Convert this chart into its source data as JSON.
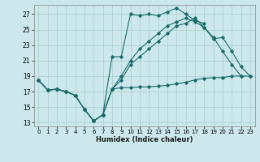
{
  "xlabel": "Humidex (Indice chaleur)",
  "ylabel": "",
  "bg_color": "#cce8ec",
  "grid_color": "#aacccc",
  "line_color": "#1a6b6b",
  "xlim": [
    -0.5,
    23.5
  ],
  "ylim": [
    12.5,
    28.2
  ],
  "yticks": [
    13,
    15,
    17,
    19,
    21,
    23,
    25,
    27
  ],
  "xticks": [
    0,
    1,
    2,
    3,
    4,
    5,
    6,
    7,
    8,
    9,
    10,
    11,
    12,
    13,
    14,
    15,
    16,
    17,
    18,
    19,
    20,
    21,
    22,
    23
  ],
  "series": [
    [
      18.5,
      17.2,
      17.3,
      17.0,
      16.5,
      14.7,
      13.2,
      14.0,
      17.3,
      17.5,
      17.5,
      17.6,
      17.6,
      17.7,
      17.8,
      18.0,
      18.2,
      18.5,
      18.7,
      18.8,
      18.8,
      19.0,
      19.0,
      19.0
    ],
    [
      18.5,
      17.2,
      17.3,
      17.0,
      16.5,
      14.7,
      13.2,
      14.0,
      21.5,
      21.5,
      27.0,
      26.8,
      27.0,
      26.8,
      27.3,
      27.8,
      27.0,
      26.2,
      25.8,
      null,
      null,
      null,
      null,
      null
    ],
    [
      18.5,
      17.2,
      17.3,
      17.0,
      16.5,
      14.7,
      13.2,
      14.0,
      17.3,
      18.5,
      20.5,
      21.5,
      22.5,
      23.5,
      24.5,
      25.5,
      25.8,
      26.5,
      25.3,
      24.0,
      22.2,
      20.5,
      19.0,
      null
    ],
    [
      18.5,
      17.2,
      17.3,
      17.0,
      16.5,
      14.7,
      13.2,
      14.0,
      17.3,
      19.0,
      21.0,
      22.5,
      23.5,
      24.5,
      25.5,
      26.0,
      26.5,
      26.0,
      25.3,
      23.8,
      24.0,
      22.2,
      20.2,
      19.0
    ]
  ]
}
